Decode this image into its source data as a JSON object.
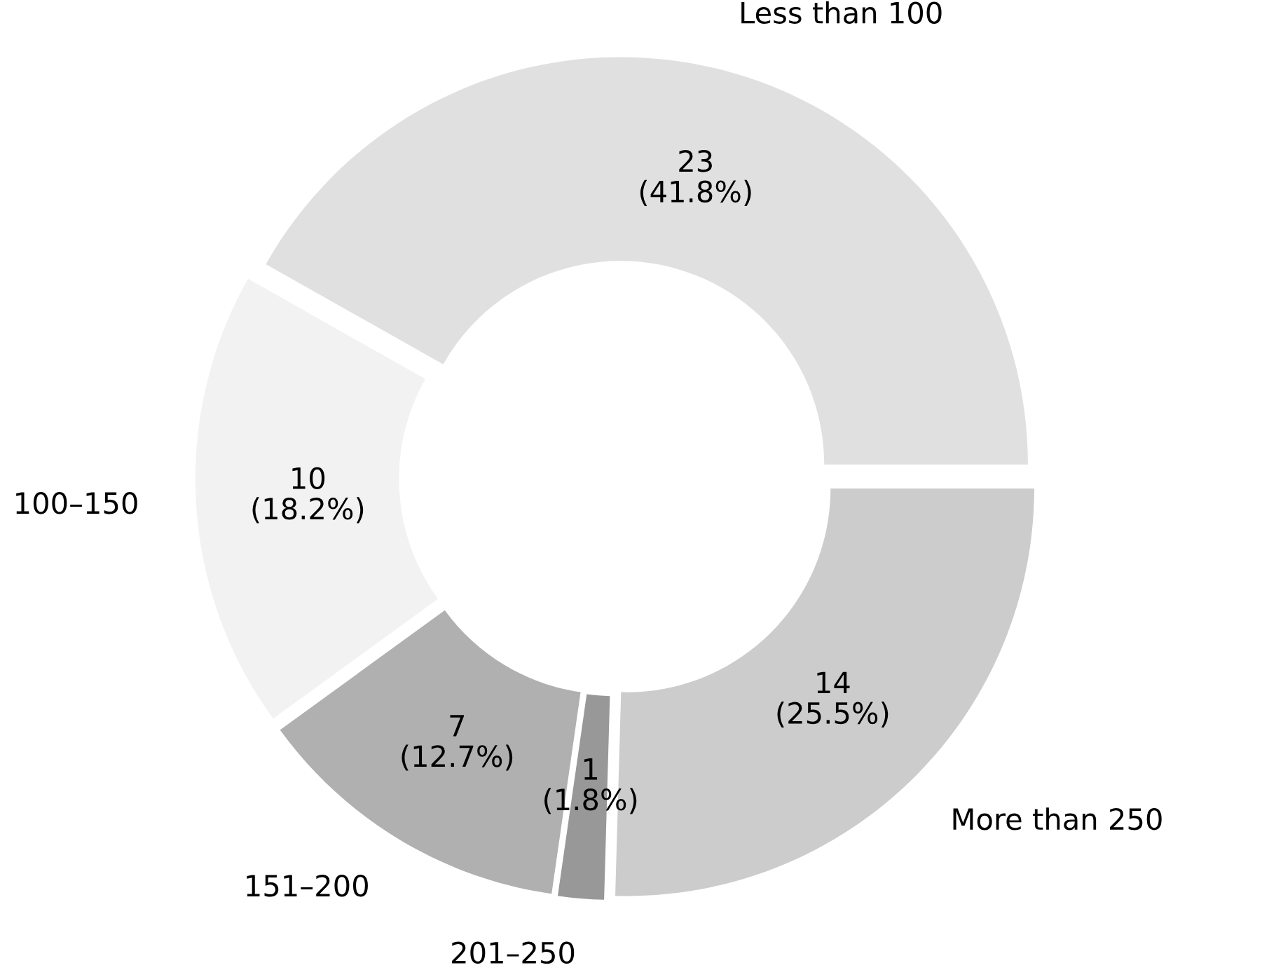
{
  "chart_data": {
    "type": "donut",
    "categories": [
      "Less than 100",
      "100–150",
      "151–200",
      "201–250",
      "More than 250"
    ],
    "values": [
      23,
      10,
      7,
      1,
      14
    ],
    "colors": [
      "#e0e0e0",
      "#f2f2f2",
      "#b0b0b0",
      "#989898",
      "#cccccc"
    ],
    "value_labels": [
      "23\n(41.8%)",
      "10\n(18.2%)",
      "7\n(12.7%)",
      "1\n(1.8%)",
      "14\n(25.5%)"
    ]
  }
}
